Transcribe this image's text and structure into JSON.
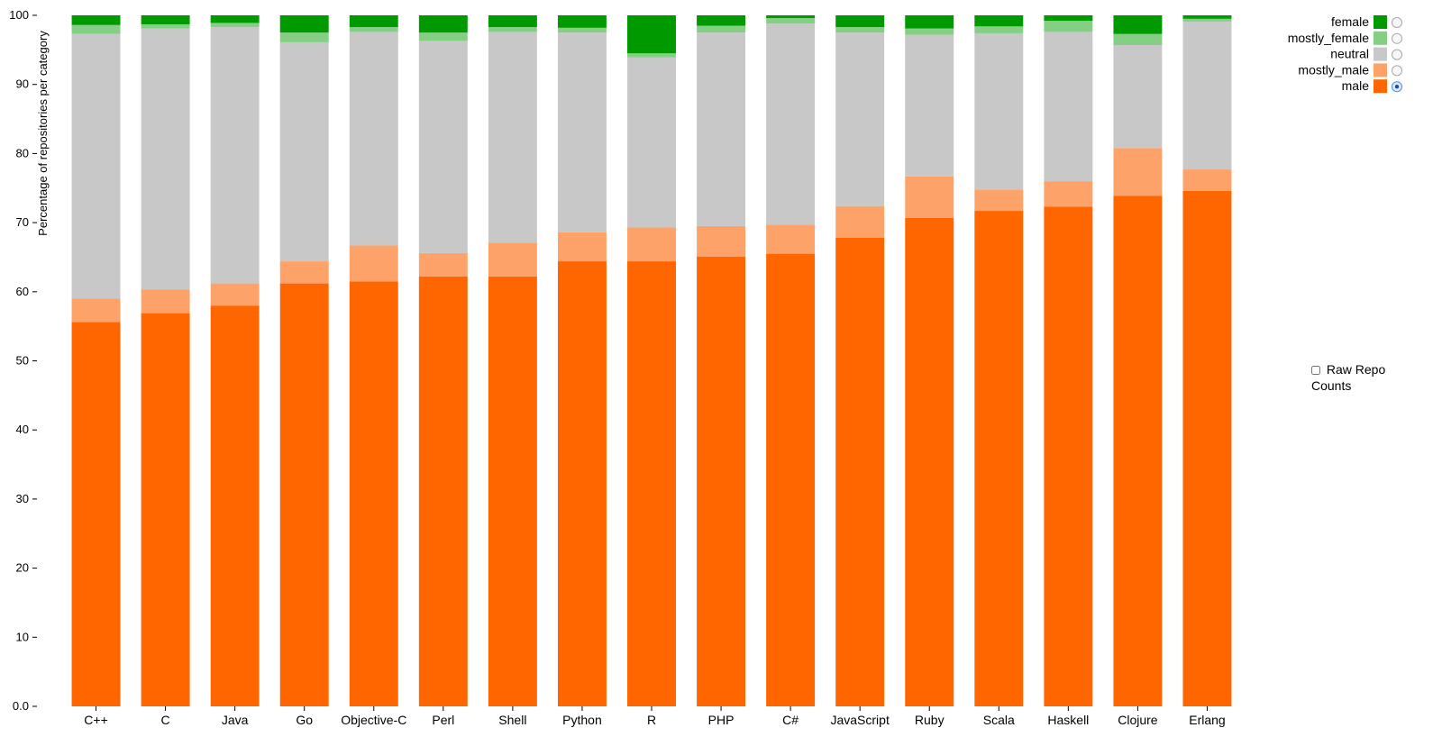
{
  "chart_data": {
    "type": "bar",
    "stacked": true,
    "ylabel": "Percentage of repositories per category",
    "ylim": [
      0,
      100
    ],
    "yticks": [
      "0.0",
      "10",
      "20",
      "30",
      "40",
      "50",
      "60",
      "70",
      "80",
      "90",
      "100"
    ],
    "grid": false,
    "legend_position": "top-right",
    "categories": [
      "C++",
      "C",
      "Java",
      "Go",
      "Objective-C",
      "Perl",
      "Shell",
      "Python",
      "R",
      "PHP",
      "C#",
      "JavaScript",
      "Ruby",
      "Scala",
      "Haskell",
      "Clojure",
      "Erlang"
    ],
    "series": [
      {
        "name": "male",
        "color": "#ff6600",
        "values": [
          55.6,
          56.9,
          58.0,
          61.2,
          61.5,
          62.2,
          62.2,
          64.4,
          64.4,
          65.1,
          65.5,
          67.8,
          70.7,
          71.7,
          72.3,
          73.9,
          74.6
        ]
      },
      {
        "name": "mostly_male",
        "color": "#fda36a",
        "values": [
          3.4,
          3.4,
          3.2,
          3.2,
          5.2,
          3.4,
          4.9,
          4.2,
          4.9,
          4.4,
          4.2,
          4.6,
          6.0,
          3.1,
          3.7,
          6.9,
          3.1
        ]
      },
      {
        "name": "neutral",
        "color": "#c8c8c8",
        "values": [
          38.3,
          37.8,
          37.1,
          31.7,
          30.9,
          30.7,
          30.5,
          28.9,
          24.6,
          28.0,
          29.1,
          25.1,
          20.5,
          22.6,
          21.6,
          14.9,
          21.4
        ]
      },
      {
        "name": "mostly_female",
        "color": "#85cf85",
        "values": [
          1.3,
          0.6,
          0.6,
          1.4,
          0.7,
          1.2,
          0.7,
          0.7,
          0.6,
          1.0,
          0.8,
          0.8,
          0.9,
          1.0,
          1.6,
          1.6,
          0.4
        ]
      },
      {
        "name": "female",
        "color": "#009900",
        "values": [
          1.4,
          1.3,
          1.1,
          2.5,
          1.7,
          2.5,
          1.7,
          1.8,
          5.5,
          1.5,
          0.4,
          1.7,
          1.9,
          1.6,
          0.8,
          2.7,
          0.5
        ]
      }
    ],
    "legend_order": [
      "female",
      "mostly_female",
      "neutral",
      "mostly_male",
      "male"
    ],
    "selected_series": "male"
  },
  "controls": {
    "raw_counts_label": "Raw Repo Counts",
    "raw_counts_checked": false
  }
}
